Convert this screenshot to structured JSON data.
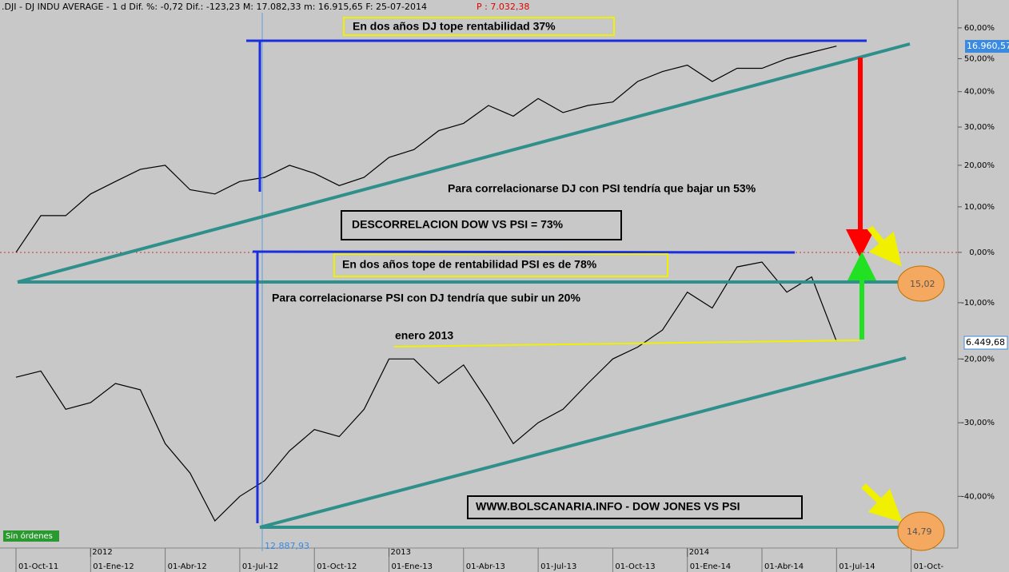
{
  "header": {
    "title": ".DJI - DJ INDU AVERAGE -  1 d Dif. %: -0,72 Dif.: -123,23 M: 17.082,33 m: 16.915,65 F: 25-07-2014",
    "last": "P : 7.032,38"
  },
  "annotations": {
    "dj_top": "En dos años DJ  tope rentabilidad 37%",
    "dj_corr": "Para correlacionarse DJ con PSI tendría que bajar un 53%",
    "descorr": "DESCORRELACION DOW VS PSI = 73%",
    "psi_top": "En dos años tope de rentabilidad PSI es de 78%",
    "psi_corr": "Para correlacionarse PSI con DJ tendría que subir un 20%",
    "enero": "enero 2013",
    "site": "WWW.BOLSCANARIA.INFO - DOW JONES VS PSI",
    "circle1": "15,02",
    "circle2": "14,79",
    "dj_price": "16.960,57",
    "psi_price": "6.449,68",
    "cursor_price": "12.887,93",
    "orders": "Sin órdenes",
    "years": [
      "2012",
      "2013",
      "2014"
    ]
  },
  "chart_data": {
    "type": "line",
    "log_scale": true,
    "x": [
      "01-Oct-11",
      "01-Nov-11",
      "01-Dic-11",
      "01-Ene-12",
      "01-Feb-12",
      "01-Mar-12",
      "01-Abr-12",
      "01-May-12",
      "01-Jun-12",
      "01-Jul-12",
      "01-Ago-12",
      "01-Sep-12",
      "01-Oct-12",
      "01-Nov-12",
      "01-Dic-12",
      "01-Ene-13",
      "01-Feb-13",
      "01-Mar-13",
      "01-Abr-13",
      "01-May-13",
      "01-Jun-13",
      "01-Jul-13",
      "01-Ago-13",
      "01-Sep-13",
      "01-Oct-13",
      "01-Nov-13",
      "01-Dic-13",
      "01-Ene-14",
      "01-Feb-14",
      "01-Mar-14",
      "01-Abr-14",
      "01-May-14",
      "01-Jun-14",
      "01-Jul-14"
    ],
    "xticks": [
      "01-Oct-11",
      "01-Ene-12",
      "01-Abr-12",
      "01-Jul-12",
      "01-Oct-12",
      "01-Ene-13",
      "01-Abr-13",
      "01-Jul-13",
      "01-Oct-13",
      "01-Ene-14",
      "01-Abr-14",
      "01-Jul-14",
      "01-Oct-"
    ],
    "series": [
      {
        "name": "DJ",
        "color": "#000000",
        "values": [
          0,
          8,
          8,
          13,
          16,
          19,
          20,
          14,
          13,
          16,
          17,
          20,
          18,
          15,
          17,
          22,
          24,
          29,
          31,
          36,
          33,
          38,
          34,
          36,
          37,
          43,
          46,
          48,
          43,
          47,
          47,
          50,
          52,
          54
        ]
      },
      {
        "name": "PSI",
        "color": "#000000",
        "values": [
          -23,
          -22,
          -28,
          -27,
          -24,
          -25,
          -33,
          -37,
          -43,
          -40,
          -38,
          -34,
          -31,
          -32,
          -28,
          -20,
          -20,
          -24,
          -21,
          -27,
          -33,
          -30,
          -28,
          -24,
          -20,
          -18,
          -15,
          -8,
          -11,
          -3,
          -2,
          -8,
          -5,
          -17
        ]
      }
    ],
    "ylim": [
      -47.4,
      68.2
    ],
    "yticks": [
      {
        "value": 60,
        "label": "60,00%"
      },
      {
        "value": 50,
        "label": "50,00%"
      },
      {
        "value": 40,
        "label": "40,00%"
      },
      {
        "value": 30,
        "label": "30,00%"
      },
      {
        "value": 20,
        "label": "20,00%"
      },
      {
        "value": 10,
        "label": "10,00%"
      },
      {
        "value": 0,
        "label": "0,00%"
      },
      {
        "value": -10,
        "label": "-10,00%"
      },
      {
        "value": -20,
        "label": "-20,00%"
      },
      {
        "value": -30,
        "label": "-30,00%"
      },
      {
        "value": -40,
        "label": "-40,00%"
      }
    ]
  }
}
